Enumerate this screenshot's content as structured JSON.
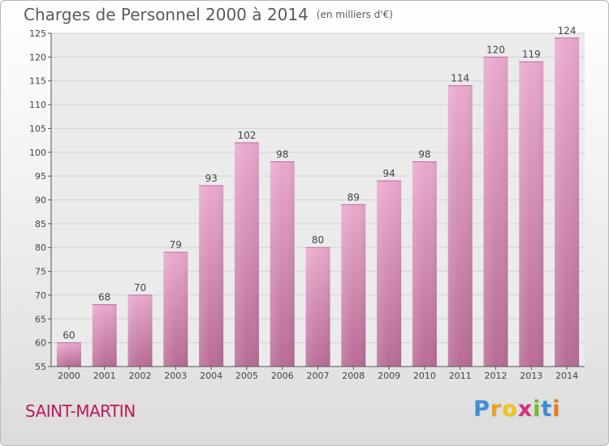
{
  "title": "Charges de Personnel 2000 à 2014",
  "subtitle": "(en milliers d'€)",
  "commune": "SAINT-MARTIN",
  "logo": {
    "letters": [
      "P",
      "r",
      "o",
      "x",
      "i",
      "t",
      "i"
    ],
    "colors": [
      "#3b8fd6",
      "#e8a11b",
      "#f0c419",
      "#d62f7a",
      "#7bb62f",
      "#3b8fd6",
      "#e37a1c"
    ]
  },
  "chart_data": {
    "type": "bar",
    "categories": [
      "2000",
      "2001",
      "2002",
      "2003",
      "2004",
      "2005",
      "2006",
      "2007",
      "2008",
      "2009",
      "2010",
      "2011",
      "2012",
      "2013",
      "2014"
    ],
    "values": [
      60,
      68,
      70,
      79,
      93,
      102,
      98,
      80,
      89,
      94,
      98,
      114,
      120,
      119,
      124
    ],
    "ylim": [
      55,
      125
    ],
    "yticks": [
      55,
      60,
      65,
      70,
      75,
      80,
      85,
      90,
      95,
      100,
      105,
      110,
      115,
      120,
      125
    ],
    "grid": true,
    "bar_color": "#d988b5"
  }
}
